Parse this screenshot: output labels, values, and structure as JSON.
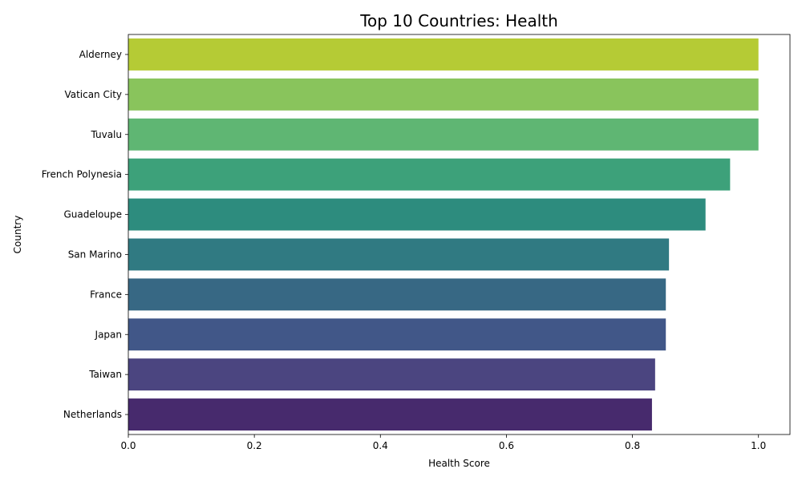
{
  "chart_data": {
    "type": "bar",
    "orientation": "horizontal",
    "title": "Top 10 Countries: Health",
    "xlabel": "Health Score",
    "ylabel": "Country",
    "xlim": [
      0,
      1.05
    ],
    "xticks": [
      0.0,
      0.2,
      0.4,
      0.6,
      0.8,
      1.0
    ],
    "xtick_labels": [
      "0.0",
      "0.2",
      "0.4",
      "0.6",
      "0.8",
      "1.0"
    ],
    "grid": false,
    "categories": [
      "Alderney",
      "Vatican City",
      "Tuvalu",
      "French Polynesia",
      "Guadeloupe",
      "San Marino",
      "France",
      "Japan",
      "Taiwan",
      "Netherlands"
    ],
    "values": [
      1.0,
      1.0,
      1.0,
      0.955,
      0.916,
      0.858,
      0.853,
      0.853,
      0.836,
      0.831
    ],
    "colors": [
      "#b5cb35",
      "#89c45c",
      "#5fb673",
      "#3da17a",
      "#2d8c7e",
      "#307a82",
      "#376884",
      "#415788",
      "#4b4580",
      "#472a6d"
    ]
  }
}
